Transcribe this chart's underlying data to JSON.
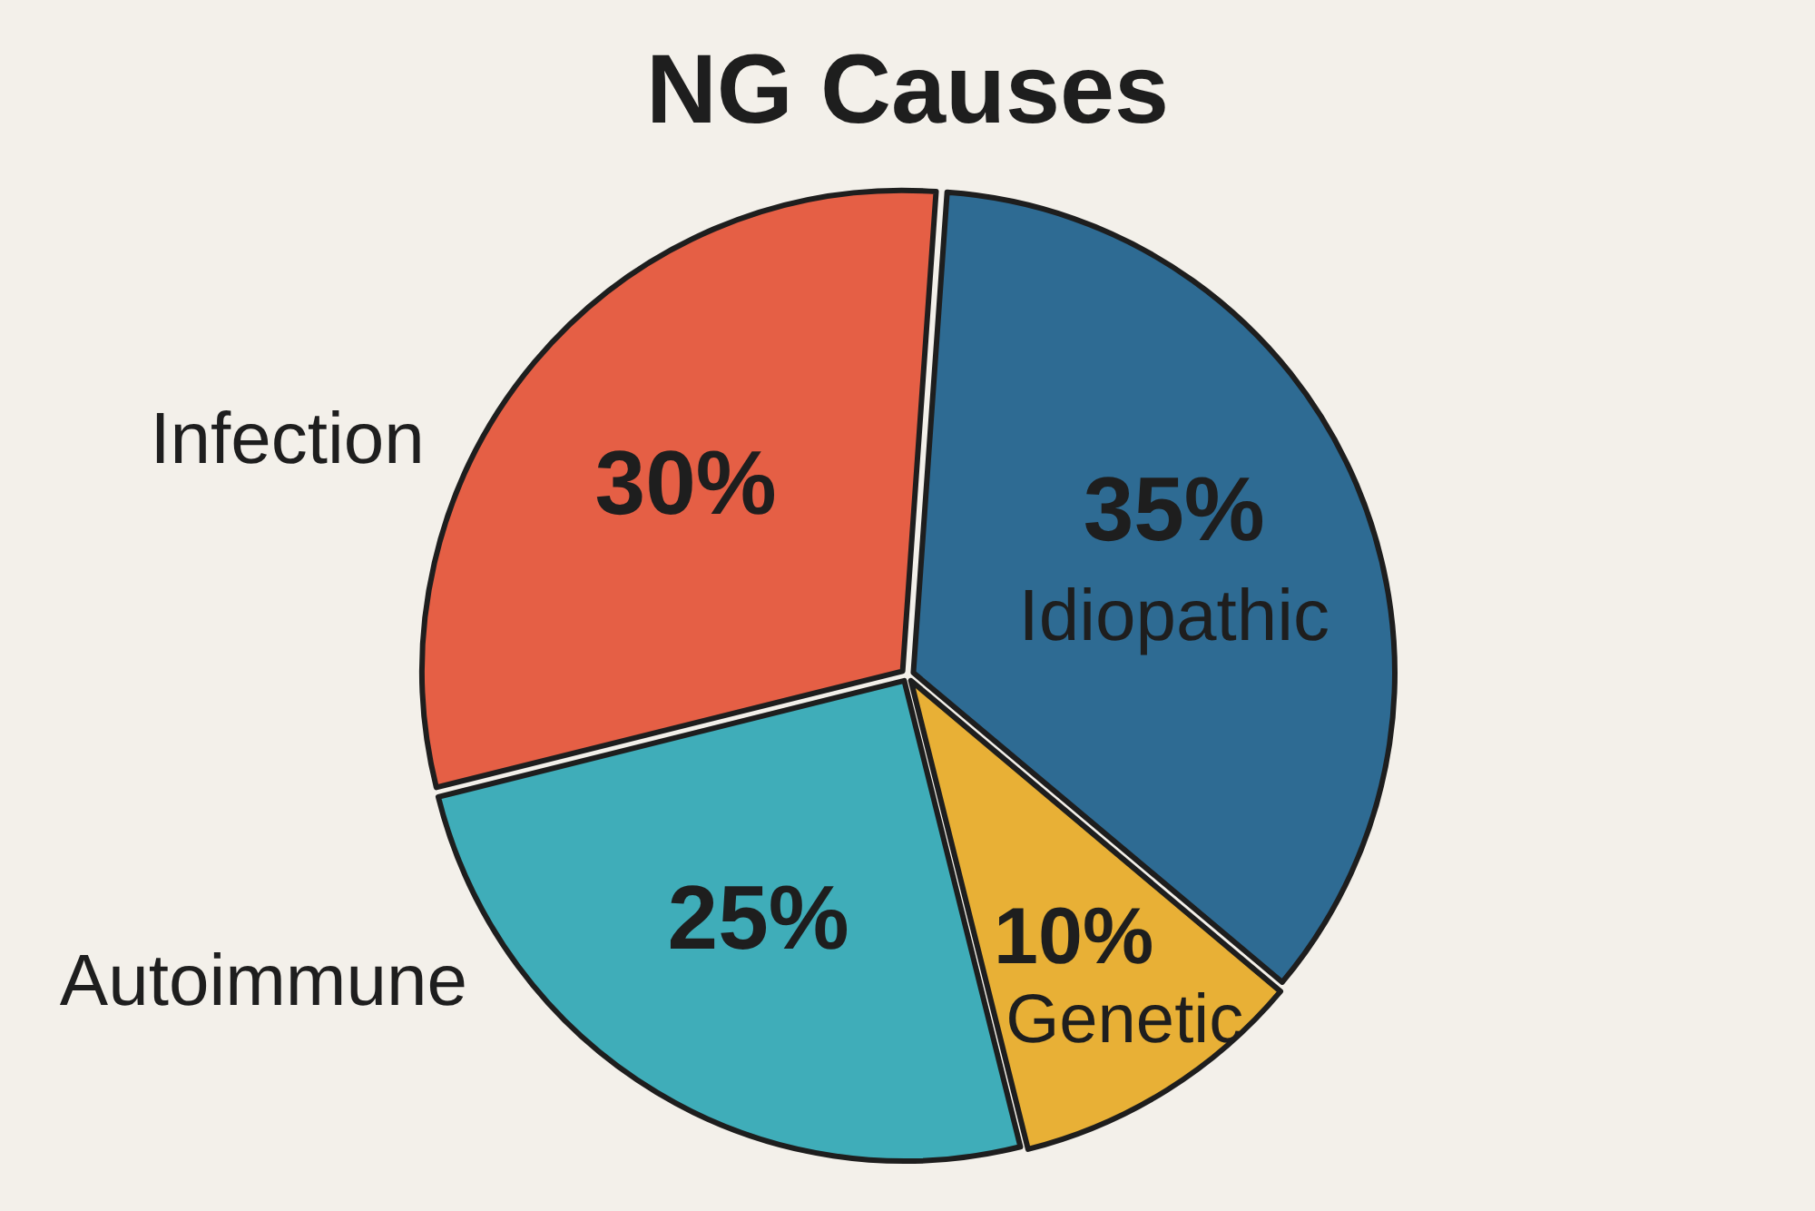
{
  "chart_data": {
    "type": "pie",
    "title": "NG Causes",
    "categories": [
      "Idiopathic",
      "Genetic",
      "Autoimmune",
      "Infection"
    ],
    "values": [
      35,
      10,
      25,
      30
    ],
    "colors": [
      "#2e6b93",
      "#e8b036",
      "#3fadb9",
      "#e55f45"
    ],
    "value_labels": [
      "35%",
      "10%",
      "25%",
      "30%"
    ],
    "legend": false
  }
}
